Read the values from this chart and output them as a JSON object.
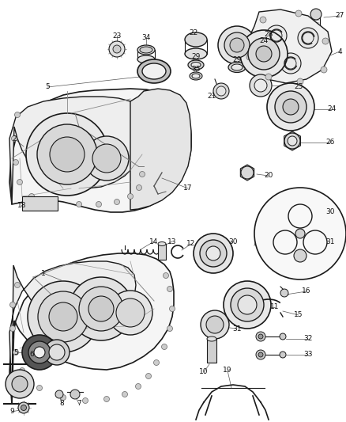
{
  "bg_color": "#ffffff",
  "fig_width": 4.38,
  "fig_height": 5.33,
  "dpi": 100,
  "line_color": "#1a1a1a",
  "label_fontsize": 6.5,
  "leader_color": "#555555",
  "leader_lw": 0.5
}
